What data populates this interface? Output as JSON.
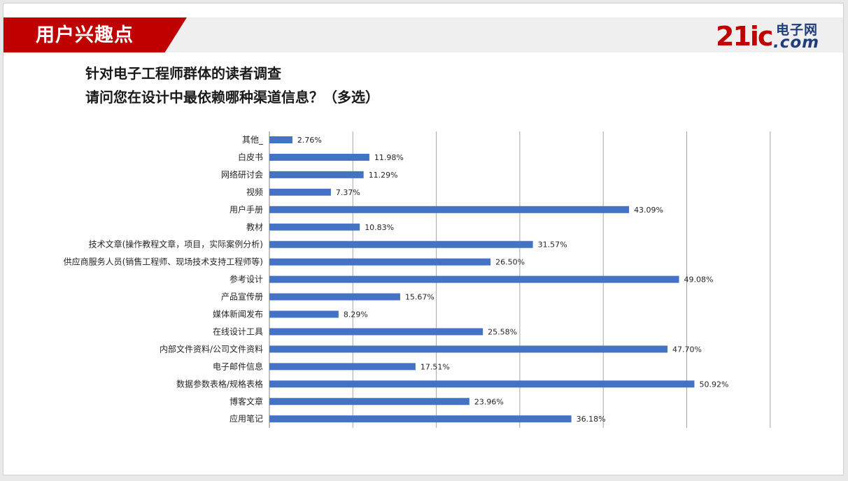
{
  "header": {
    "section_title": "用户兴趣点",
    "logo": {
      "number": "21ic",
      "cn": "电子网",
      "com": ".com",
      "brand_color": "#c00000",
      "accent_color": "#1f3d7a"
    }
  },
  "chart_data": {
    "type": "bar",
    "orientation": "horizontal",
    "title": "针对电子工程师群体的读者调查",
    "subtitle": "请问您在设计中最依赖哪种渠道信息？（多选）",
    "categories": [
      "其他_",
      "白皮书",
      "网络研讨会",
      "视频",
      "用户手册",
      "教材",
      "技术文章(操作教程文章，项目，实际案例分析)",
      "供应商服务人员(销售工程师、现场技术支持工程师等)",
      "参考设计",
      "产品宣传册",
      "媒体新闻发布",
      "在线设计工具",
      "内部文件资料/公司文件资料",
      "电子邮件信息",
      "数据参数表格/规格表格",
      "博客文章",
      "应用笔记"
    ],
    "values": [
      2.76,
      11.98,
      11.29,
      7.37,
      43.09,
      10.83,
      31.57,
      26.5,
      49.08,
      15.67,
      8.29,
      25.58,
      47.7,
      17.51,
      50.92,
      23.96,
      36.18
    ],
    "data_labels": [
      "2.76%",
      "11.98%",
      "11.29%",
      "7.37%",
      "43.09%",
      "10.83%",
      "31.57%",
      "26.50%",
      "49.08%",
      "15.67%",
      "8.29%",
      "25.58%",
      "47.70%",
      "17.51%",
      "50.92%",
      "23.96%",
      "36.18%"
    ],
    "xlim": [
      0,
      60
    ],
    "grid": true,
    "tick_labels_visible": false,
    "bar_color": "#4472c4",
    "grid_color": "#a6a6a6"
  }
}
